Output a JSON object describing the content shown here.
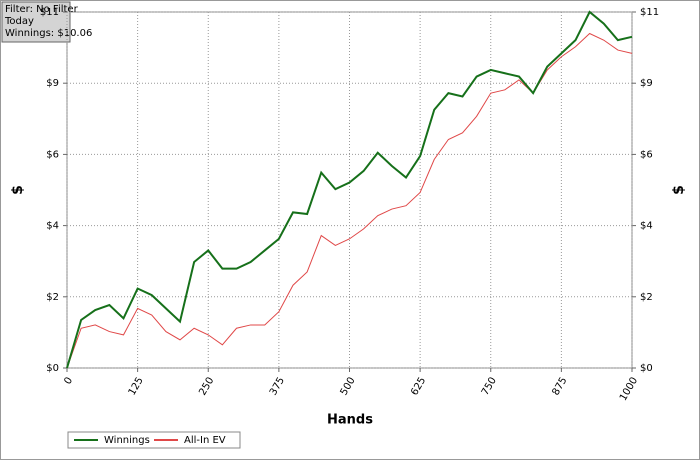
{
  "chart_data": {
    "type": "line",
    "annotation": [
      "Filter: No Filter",
      "Today",
      "Winnings: $10.06"
    ],
    "xlabel": "Hands",
    "ylabel": "$",
    "x": [
      0,
      25,
      50,
      75,
      100,
      125,
      150,
      175,
      200,
      225,
      250,
      275,
      300,
      325,
      350,
      375,
      400,
      425,
      450,
      475,
      500,
      525,
      550,
      575,
      600,
      625,
      650,
      675,
      700,
      725,
      750,
      775,
      800,
      825,
      850,
      875,
      900,
      925,
      950,
      975,
      1000
    ],
    "series": [
      {
        "name": "Winnings",
        "color": "#16701a",
        "values": [
          0,
          1.45,
          1.75,
          1.9,
          1.5,
          2.4,
          2.2,
          1.8,
          1.4,
          3.2,
          3.55,
          3.0,
          3.0,
          3.2,
          3.55,
          3.9,
          4.7,
          4.65,
          5.9,
          5.4,
          5.6,
          5.95,
          6.5,
          6.1,
          5.75,
          6.4,
          7.8,
          8.3,
          8.2,
          8.8,
          9.0,
          8.9,
          8.8,
          8.3,
          9.1,
          9.5,
          9.9,
          10.75,
          10.4,
          9.9,
          10.0
        ]
      },
      {
        "name": "All-In EV",
        "color": "#e04848",
        "values": [
          0,
          1.2,
          1.3,
          1.1,
          1.0,
          1.8,
          1.6,
          1.1,
          0.85,
          1.2,
          1.0,
          0.7,
          1.2,
          1.3,
          1.3,
          1.7,
          2.5,
          2.9,
          4.0,
          3.7,
          3.9,
          4.2,
          4.6,
          4.8,
          4.9,
          5.3,
          6.3,
          6.9,
          7.1,
          7.6,
          8.3,
          8.4,
          8.7,
          8.3,
          9.0,
          9.4,
          9.7,
          10.1,
          9.9,
          9.6,
          9.5
        ]
      }
    ],
    "xlim": [
      0,
      1000
    ],
    "xticks": [
      0,
      125,
      250,
      375,
      500,
      625,
      750,
      875,
      1000
    ],
    "ylim": [
      0,
      10.75
    ],
    "yticks": [
      {
        "value": 0,
        "label": "$0"
      },
      {
        "value": 2.15,
        "label": "$2"
      },
      {
        "value": 4.3,
        "label": "$4"
      },
      {
        "value": 6.45,
        "label": "$6"
      },
      {
        "value": 8.6,
        "label": "$9"
      },
      {
        "value": 10.75,
        "label": "$11"
      }
    ],
    "grid": true,
    "legend": "bottom-left"
  }
}
